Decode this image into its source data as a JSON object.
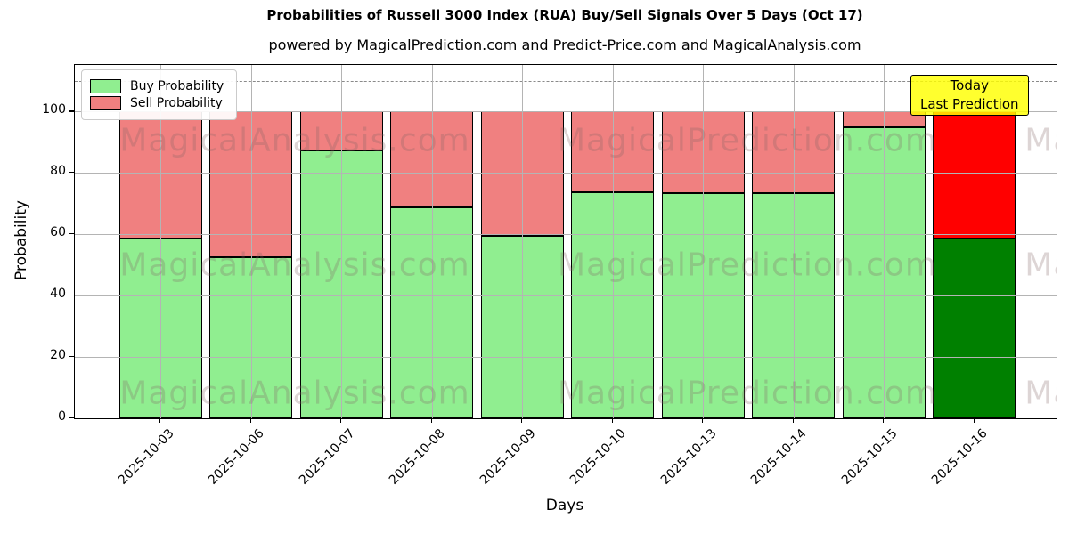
{
  "chart": {
    "title": "Probabilities of Russell 3000 Index (RUA) Buy/Sell Signals Over 5 Days (Oct 17)",
    "subtitle": "powered by MagicalPrediction.com and Predict-Price.com and MagicalAnalysis.com",
    "xlabel": "Days",
    "ylabel": "Probability",
    "legend": [
      {
        "label": "Buy Probability",
        "color": "#90EE90"
      },
      {
        "label": "Sell Probability",
        "color": "#F08080"
      }
    ],
    "annotation": {
      "line1": "Today",
      "line2": "Last Prediction",
      "bg_color": "#FFFF00"
    },
    "watermarks": [
      "MagicalAnalysis.com",
      "MagicalPrediction.com"
    ]
  },
  "chart_data": {
    "type": "bar",
    "stacked": true,
    "title": "Probabilities of Russell 3000 Index (RUA) Buy/Sell Signals Over 5 Days (Oct 17)",
    "xlabel": "Days",
    "ylabel": "Probability",
    "categories": [
      "2025-10-03",
      "2025-10-06",
      "2025-10-07",
      "2025-10-08",
      "2025-10-09",
      "2025-10-10",
      "2025-10-13",
      "2025-10-14",
      "2025-10-15",
      "2025-10-16"
    ],
    "series": [
      {
        "name": "Buy Probability",
        "color": "#90EE90",
        "today_color": "#008000",
        "values": [
          58.7,
          52.4,
          87.3,
          68.8,
          59.5,
          73.8,
          73.5,
          73.5,
          95.0,
          58.7
        ]
      },
      {
        "name": "Sell Probability",
        "color": "#F08080",
        "today_color": "#FF0000",
        "values": [
          41.3,
          47.6,
          12.7,
          31.2,
          40.5,
          26.2,
          26.5,
          26.5,
          5.0,
          41.3
        ]
      }
    ],
    "ylim": [
      0,
      115.2
    ],
    "yticks": [
      0,
      20,
      40,
      60,
      80,
      100
    ],
    "dashed_line_y": 110,
    "grid": true,
    "legend_position": "upper left",
    "today_index": 9
  }
}
